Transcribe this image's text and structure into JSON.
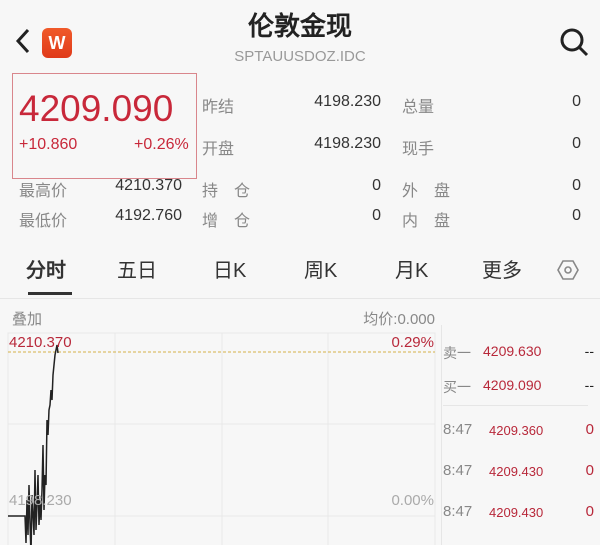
{
  "header": {
    "title": "伦敦金现",
    "code": "SPTAUUSDOZ.IDC",
    "logo": "W",
    "back_icon": "chevron-left-icon",
    "search_icon": "search-icon"
  },
  "quote": {
    "price": "4209.090",
    "change": "+10.860",
    "change_pct": "+0.26%",
    "stats": [
      {
        "label": "昨结",
        "value": "4198.230"
      },
      {
        "label": "总量",
        "value": "0"
      },
      {
        "label": "开盘",
        "value": "4198.230"
      },
      {
        "label": "现手",
        "value": "0"
      },
      {
        "label": "最高价",
        "value": "4210.370"
      },
      {
        "label": "持　仓",
        "value": "0"
      },
      {
        "label": "外　盘",
        "value": "0"
      },
      {
        "label": "最低价",
        "value": "4192.760"
      },
      {
        "label": "增　仓",
        "value": "0"
      },
      {
        "label": "内　盘",
        "value": "0"
      }
    ]
  },
  "tabs": [
    "分时",
    "五日",
    "日K",
    "周K",
    "月K",
    "更多"
  ],
  "settings_icon": "hexagon-settings-icon",
  "chart": {
    "overlay": "叠加",
    "avg_price": "均价:0.000",
    "high_label": "4210.370",
    "high_pct": "0.29%",
    "base_label": "4198.230",
    "base_pct": "0.00%"
  },
  "orderbook": {
    "sell": {
      "label": "卖一",
      "price": "4209.630",
      "vol": "--"
    },
    "buy": {
      "label": "买一",
      "price": "4209.090",
      "vol": "--"
    }
  },
  "ticks": [
    {
      "time": "8:47",
      "price": "4209.360",
      "vol": "0"
    },
    {
      "time": "8:47",
      "price": "4209.430",
      "vol": "0"
    },
    {
      "time": "8:47",
      "price": "4209.430",
      "vol": "0"
    }
  ],
  "colors": {
    "up": "#c8283a",
    "line": "#222222"
  }
}
